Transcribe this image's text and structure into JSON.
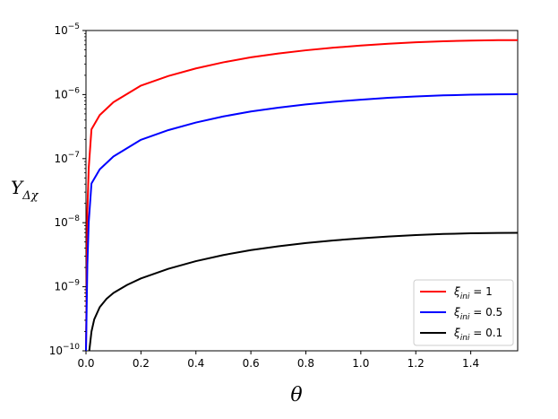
{
  "chart_data": {
    "type": "line",
    "xlabel": "θ",
    "ylabel": "Y",
    "ylabel_sub": "Δχ",
    "xlim": [
      0,
      1.5708
    ],
    "ylim": [
      1e-10,
      1e-05
    ],
    "yscale": "log",
    "grid": false,
    "legend_position": "lower-right",
    "x_ticks": [
      0.0,
      0.2,
      0.4,
      0.6,
      0.8,
      1.0,
      1.2,
      1.4
    ],
    "x_tick_labels": [
      "0.0",
      "0.2",
      "0.4",
      "0.6",
      "0.8",
      "1.0",
      "1.2",
      "1.4"
    ],
    "y_ticks_exp": [
      -10,
      -9,
      -8,
      -7,
      -6,
      -5
    ],
    "y_tick_base": "10",
    "series": [
      {
        "name": "ξini = 1",
        "legend_symbol": "ξ",
        "legend_sub": "ini",
        "legend_value": " = 1",
        "color": "#ff0000",
        "x": [
          0.0,
          0.005,
          0.01,
          0.02,
          0.05,
          0.1,
          0.2,
          0.3,
          0.4,
          0.5,
          0.6,
          0.7,
          0.8,
          0.9,
          1.0,
          1.1,
          1.2,
          1.3,
          1.4,
          1.5,
          1.5708
        ],
        "y": [
          1e-10,
          1.54e-08,
          7.17e-08,
          2.87e-07,
          4.78e-07,
          7.6e-07,
          1.38e-06,
          1.95e-06,
          2.56e-06,
          3.19e-06,
          3.81e-06,
          4.37e-06,
          4.91e-06,
          5.39e-06,
          5.83e-06,
          6.22e-06,
          6.55e-06,
          6.8e-06,
          6.97e-06,
          7.06e-06,
          7.08e-06
        ]
      },
      {
        "name": "ξini = 0.5",
        "legend_symbol": "ξ",
        "legend_sub": "ini",
        "legend_value": " = 0.5",
        "color": "#0000ff",
        "x": [
          0.0,
          0.005,
          0.01,
          0.02,
          0.05,
          0.1,
          0.2,
          0.3,
          0.4,
          0.5,
          0.6,
          0.7,
          0.8,
          0.9,
          1.0,
          1.1,
          1.2,
          1.3,
          1.4,
          1.5,
          1.5708
        ],
        "y": [
          1e-10,
          2.2e-09,
          1.02e-08,
          4.1e-08,
          6.8e-08,
          1.08e-07,
          1.97e-07,
          2.79e-07,
          3.66e-07,
          4.56e-07,
          5.44e-07,
          6.24e-07,
          7.01e-07,
          7.7e-07,
          8.33e-07,
          8.89e-07,
          9.36e-07,
          9.71e-07,
          9.96e-07,
          1.01e-06,
          1.011e-06
        ]
      },
      {
        "name": "ξini = 0.1",
        "legend_symbol": "ξ",
        "legend_sub": "ini",
        "legend_value": " = 0.1",
        "color": "#000000",
        "x": [
          0.012,
          0.02,
          0.03,
          0.05,
          0.075,
          0.1,
          0.15,
          0.2,
          0.3,
          0.4,
          0.5,
          0.6,
          0.7,
          0.8,
          0.9,
          1.0,
          1.1,
          1.2,
          1.3,
          1.4,
          1.5,
          1.5708
        ],
        "y": [
          1e-10,
          2e-10,
          3.1e-10,
          4.8e-10,
          6.5e-10,
          8e-10,
          1.07e-09,
          1.35e-09,
          1.91e-09,
          2.51e-09,
          3.13e-09,
          3.73e-09,
          4.28e-09,
          4.81e-09,
          5.28e-09,
          5.71e-09,
          6.09e-09,
          6.41e-09,
          6.66e-09,
          6.83e-09,
          6.92e-09,
          6.94e-09
        ]
      }
    ]
  }
}
